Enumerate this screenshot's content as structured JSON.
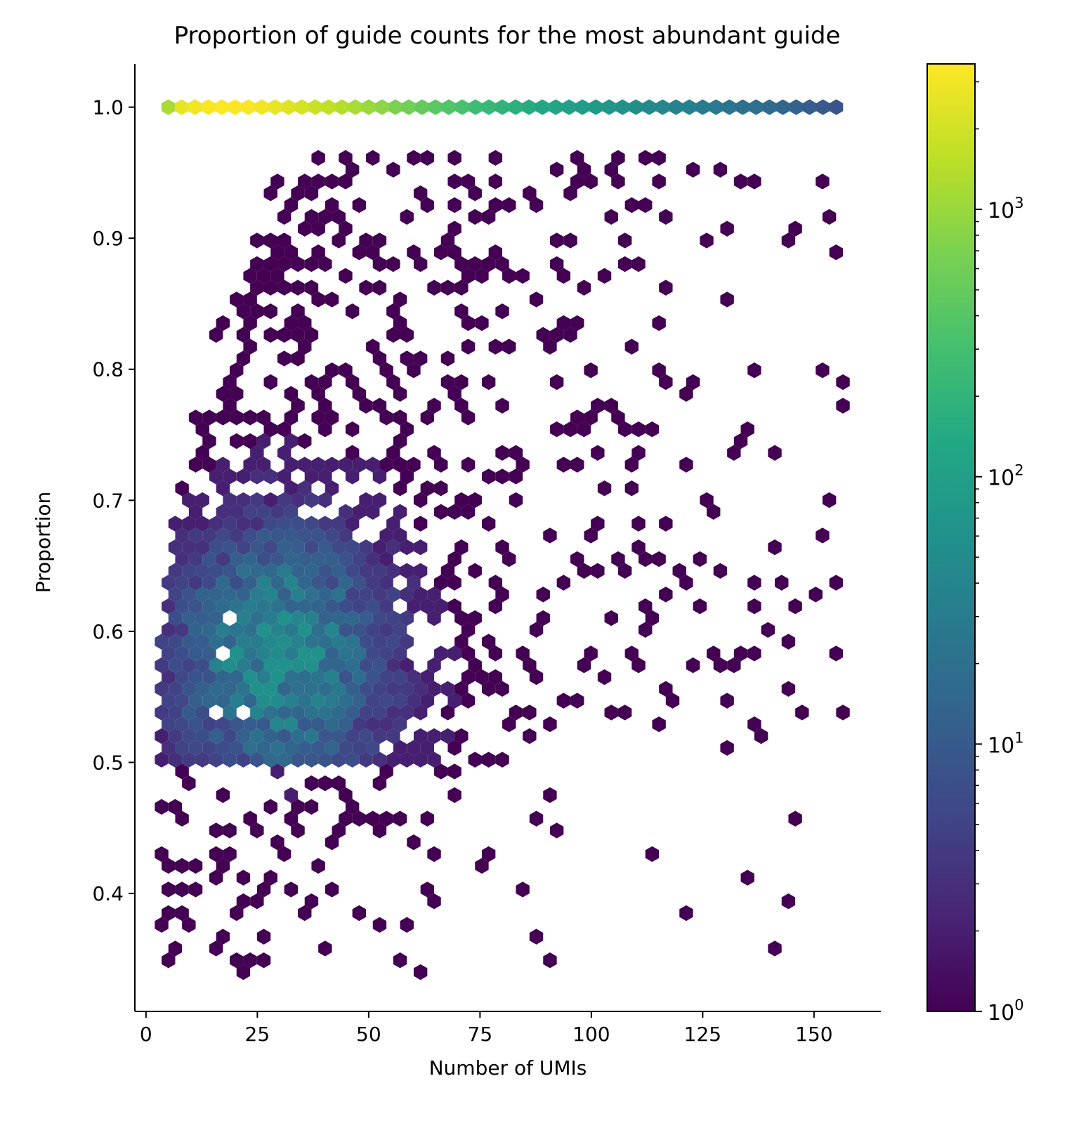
{
  "chart_data": {
    "type": "heatmap",
    "subtype": "hexbin",
    "title": "Proportion of guide counts for the most abundant guide",
    "xlabel": "Number of UMIs",
    "ylabel": "Proportion",
    "xlim": [
      -2.5,
      165
    ],
    "ylim": [
      0.31,
      1.033
    ],
    "xticks": [
      0,
      25,
      50,
      75,
      100,
      125,
      150
    ],
    "yticks": [
      0.4,
      0.5,
      0.6,
      0.7,
      0.8,
      0.9,
      1.0
    ],
    "colorbar": {
      "scale": "log",
      "colormap": "viridis",
      "range": [
        1,
        3500
      ],
      "ticks": [
        1,
        10,
        100,
        1000
      ],
      "tick_base": "10",
      "tick_exponents": [
        "0",
        "1",
        "2",
        "3"
      ]
    },
    "top_row": {
      "y": 1.0,
      "x": [
        5,
        8,
        11,
        14,
        17,
        20,
        23,
        26,
        29,
        32,
        35,
        38,
        41,
        44,
        47,
        50,
        53,
        56,
        59,
        62,
        65,
        68,
        71,
        74,
        77,
        80,
        83,
        86,
        89,
        92,
        95,
        98,
        101,
        104,
        107,
        110,
        113,
        116,
        119,
        122,
        125,
        128,
        131,
        134,
        137,
        140,
        143,
        146,
        149,
        152,
        155
      ],
      "counts": [
        1200,
        2600,
        3000,
        3300,
        3400,
        3400,
        3200,
        3000,
        2700,
        2400,
        2100,
        1800,
        1600,
        1400,
        1200,
        1000,
        850,
        700,
        600,
        500,
        430,
        370,
        320,
        270,
        230,
        200,
        175,
        150,
        130,
        115,
        100,
        88,
        78,
        68,
        60,
        53,
        47,
        42,
        38,
        34,
        30,
        27,
        24,
        21,
        19,
        17,
        15,
        13,
        11,
        10,
        8
      ]
    },
    "cloud": {
      "description_counts": "estimated density of the scatter hexbins below 1.0",
      "max_count": 60
    }
  }
}
